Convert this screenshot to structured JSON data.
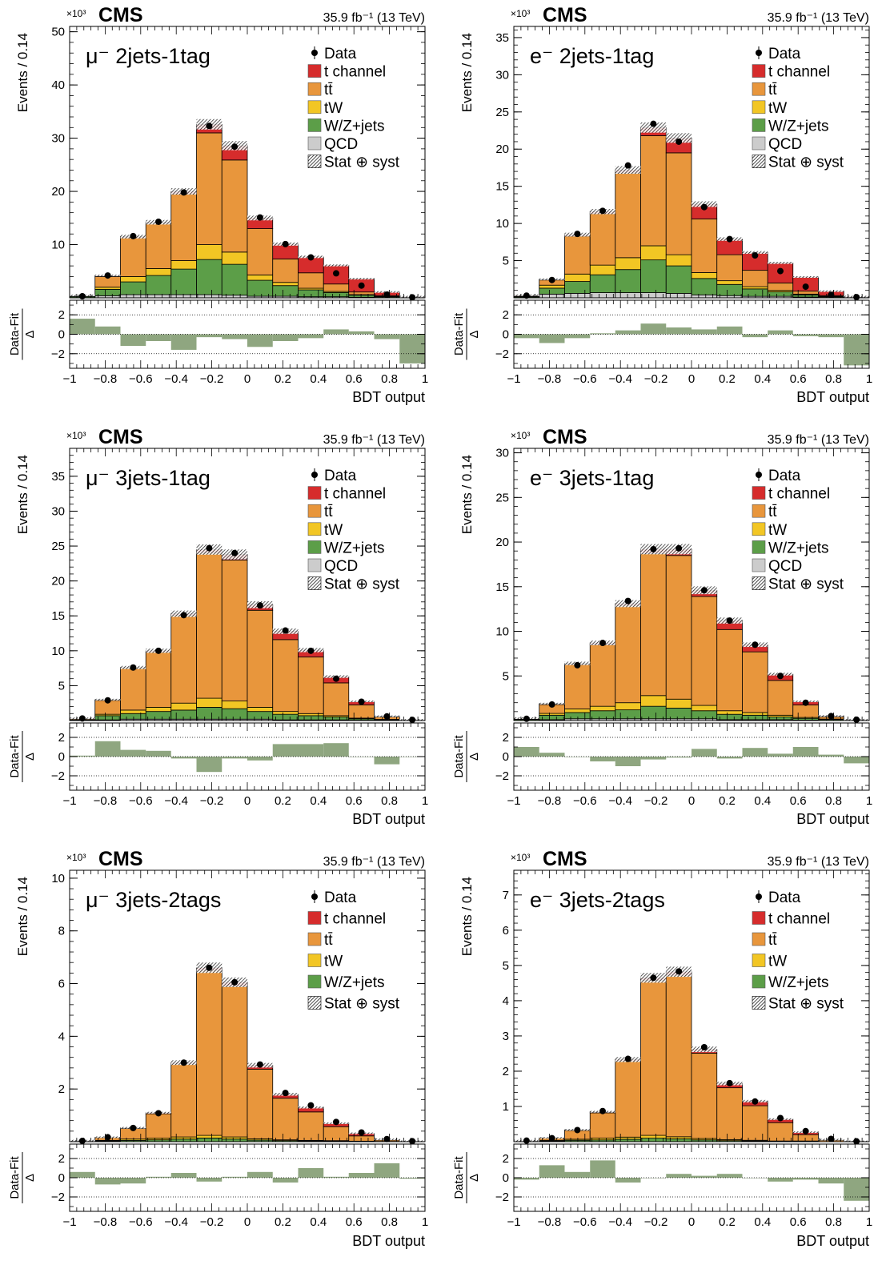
{
  "figure": {
    "colors": {
      "t_channel": "#d62c2c",
      "ttbar": "#e8963c",
      "tW": "#f2c624",
      "wzjets": "#5c9e48",
      "qcd": "#cccccc",
      "ratio": "#8fa680"
    }
  },
  "chart_data": [
    {
      "type": "bar",
      "panel_label": "μ⁻ 2jets-1tag",
      "experiment": "CMS",
      "lumi": "35.9 fb⁻¹ (13 TeV)",
      "yexp": "×10³",
      "ylabel": "Events / 0.14",
      "xlabel": "BDT output",
      "ratio_ylabel_num": "Data-Fit",
      "ratio_ylabel_den": "Δ",
      "ylim": [
        0,
        51
      ],
      "yticks": [
        10,
        20,
        30,
        40,
        50
      ],
      "xlim": [
        -1,
        1
      ],
      "xticks": [
        "−1",
        "−0.8",
        "−0.6",
        "−0.4",
        "−0.2",
        "0",
        "0.2",
        "0.4",
        "0.6",
        "0.8",
        "1"
      ],
      "ratio_ylim": [
        -3.5,
        3.5
      ],
      "ratio_yticks": [
        "2",
        "0",
        "−2"
      ],
      "bin_edges": [
        -1.0,
        -0.857,
        -0.714,
        -0.571,
        -0.429,
        -0.286,
        -0.143,
        0.0,
        0.143,
        0.286,
        0.429,
        0.571,
        0.714,
        0.857,
        1.0
      ],
      "legend": [
        "Data",
        "t channel",
        "tt̄",
        "tW",
        "W/Z+jets",
        "QCD",
        "Stat ⊕ syst"
      ],
      "series": [
        {
          "key": "qcd",
          "values": [
            0.05,
            0.4,
            0.6,
            0.6,
            0.6,
            0.6,
            0.5,
            0.3,
            0.3,
            0.2,
            0.2,
            0.1,
            0.05,
            0.02
          ]
        },
        {
          "key": "wzjets",
          "values": [
            0.2,
            1.2,
            2.4,
            3.6,
            4.8,
            6.6,
            5.8,
            3.0,
            2.0,
            1.3,
            0.8,
            0.4,
            0.15,
            0.03
          ]
        },
        {
          "key": "tW",
          "values": [
            0.05,
            0.4,
            1.0,
            1.3,
            1.6,
            2.8,
            2.3,
            1.0,
            0.6,
            0.3,
            0.2,
            0.1,
            0.05,
            0.01
          ]
        },
        {
          "key": "ttbar",
          "values": [
            0.1,
            2.0,
            7.3,
            8.5,
            12.5,
            21.0,
            17.3,
            8.7,
            4.4,
            2.9,
            1.4,
            0.5,
            0.15,
            0.02
          ]
        },
        {
          "key": "t_channel",
          "values": [
            0.05,
            0.2,
            0.2,
            0.2,
            0.5,
            1.6,
            2.7,
            2.0,
            2.8,
            3.0,
            3.5,
            2.5,
            0.7,
            0.15
          ]
        }
      ],
      "data": [
        0.3,
        4.2,
        11.6,
        14.3,
        19.8,
        32.3,
        28.4,
        15.1,
        10.1,
        7.6,
        4.6,
        2.3,
        0.6,
        0.1
      ],
      "ratio": [
        1.6,
        0.8,
        -1.2,
        -0.7,
        -1.6,
        -0.3,
        -0.5,
        -1.3,
        -0.7,
        -0.4,
        0.5,
        0.3,
        -0.5,
        -3.0
      ]
    },
    {
      "type": "bar",
      "panel_label": "e⁻ 2jets-1tag",
      "experiment": "CMS",
      "lumi": "35.9 fb⁻¹ (13 TeV)",
      "yexp": "×10³",
      "ylabel": "Events / 0.14",
      "xlabel": "BDT output",
      "ratio_ylabel_num": "Data-Fit",
      "ratio_ylabel_den": "Δ",
      "ylim": [
        0,
        36.5
      ],
      "yticks": [
        5,
        10,
        15,
        20,
        25,
        30,
        35
      ],
      "xlim": [
        -1,
        1
      ],
      "xticks": [
        "−1",
        "−0.8",
        "−0.6",
        "−0.4",
        "−0.2",
        "0",
        "0.2",
        "0.4",
        "0.6",
        "0.8",
        "1"
      ],
      "ratio_ylim": [
        -3.5,
        3.5
      ],
      "ratio_yticks": [
        "2",
        "0",
        "−2"
      ],
      "bin_edges": [
        -1.0,
        -0.857,
        -0.714,
        -0.571,
        -0.429,
        -0.286,
        -0.143,
        0.0,
        0.143,
        0.286,
        0.429,
        0.571,
        0.714,
        0.857,
        1.0
      ],
      "legend": [
        "Data",
        "t channel",
        "tt̄",
        "tW",
        "W/Z+jets",
        "QCD",
        "Stat ⊕ syst"
      ],
      "series": [
        {
          "key": "qcd",
          "values": [
            0.05,
            0.5,
            0.6,
            0.7,
            0.7,
            0.7,
            0.6,
            0.4,
            0.3,
            0.2,
            0.2,
            0.1,
            0.05,
            0.02
          ]
        },
        {
          "key": "wzjets",
          "values": [
            0.1,
            0.8,
            1.6,
            2.4,
            3.1,
            4.4,
            3.7,
            2.2,
            1.5,
            1.0,
            0.6,
            0.3,
            0.1,
            0.02
          ]
        },
        {
          "key": "tW",
          "values": [
            0.05,
            0.4,
            1.0,
            1.3,
            1.6,
            1.9,
            1.5,
            0.8,
            0.5,
            0.3,
            0.2,
            0.1,
            0.05,
            0.01
          ]
        },
        {
          "key": "ttbar",
          "values": [
            0.1,
            0.7,
            5.1,
            6.9,
            11.4,
            14.8,
            13.7,
            7.2,
            3.5,
            2.2,
            1.0,
            0.4,
            0.1,
            0.02
          ]
        },
        {
          "key": "t_channel",
          "values": [
            0.05,
            0.1,
            0.2,
            0.3,
            0.4,
            1.1,
            2.0,
            2.0,
            2.1,
            2.4,
            2.7,
            1.9,
            0.6,
            0.1
          ]
        }
      ],
      "data": [
        0.3,
        2.4,
        8.6,
        11.7,
        17.8,
        23.4,
        21.0,
        12.2,
        7.9,
        5.7,
        3.6,
        1.5,
        0.4,
        0.1
      ],
      "ratio": [
        -0.4,
        -0.9,
        -0.4,
        0.1,
        0.4,
        1.1,
        0.7,
        0.5,
        0.8,
        -0.3,
        0.4,
        -0.2,
        -0.3,
        -3.2
      ]
    },
    {
      "type": "bar",
      "panel_label": "μ⁻ 3jets-1tag",
      "experiment": "CMS",
      "lumi": "35.9 fb⁻¹ (13 TeV)",
      "yexp": "×10³",
      "ylabel": "Events / 0.14",
      "xlabel": "BDT output",
      "ratio_ylabel_num": "Data-Fit",
      "ratio_ylabel_den": "Δ",
      "ylim": [
        0,
        39
      ],
      "yticks": [
        5,
        10,
        15,
        20,
        25,
        30,
        35
      ],
      "xlim": [
        -1,
        1
      ],
      "xticks": [
        "−1",
        "−0.8",
        "−0.6",
        "−0.4",
        "−0.2",
        "0",
        "0.2",
        "0.4",
        "0.6",
        "0.8",
        "1"
      ],
      "ratio_ylim": [
        -3.5,
        3.5
      ],
      "ratio_yticks": [
        "2",
        "0",
        "−2"
      ],
      "bin_edges": [
        -1.0,
        -0.857,
        -0.714,
        -0.571,
        -0.429,
        -0.286,
        -0.143,
        0.0,
        0.143,
        0.286,
        0.429,
        0.571,
        0.714,
        0.857,
        1.0
      ],
      "legend": [
        "Data",
        "t channel",
        "tt̄",
        "tW",
        "W/Z+jets",
        "QCD",
        "Stat ⊕ syst"
      ],
      "series": [
        {
          "key": "qcd",
          "values": [
            0.02,
            0.1,
            0.2,
            0.2,
            0.2,
            0.2,
            0.2,
            0.2,
            0.1,
            0.1,
            0.1,
            0.05,
            0.02,
            0.01
          ]
        },
        {
          "key": "wzjets",
          "values": [
            0.1,
            0.6,
            0.8,
            1.1,
            1.3,
            1.7,
            1.5,
            1.1,
            0.8,
            0.6,
            0.4,
            0.2,
            0.1,
            0.02
          ]
        },
        {
          "key": "tW",
          "values": [
            0.03,
            0.2,
            0.5,
            0.6,
            1.0,
            1.3,
            1.1,
            0.6,
            0.4,
            0.3,
            0.2,
            0.1,
            0.05,
            0.01
          ]
        },
        {
          "key": "ttbar",
          "values": [
            0.15,
            2.0,
            6.0,
            7.9,
            12.6,
            20.8,
            20.2,
            13.9,
            10.3,
            8.1,
            4.7,
            1.9,
            0.35,
            0.05
          ]
        },
        {
          "key": "t_channel",
          "values": [
            0.02,
            0.1,
            0.1,
            0.2,
            0.2,
            0.5,
            0.8,
            0.8,
            1.2,
            1.0,
            0.9,
            0.5,
            0.1,
            0.02
          ]
        }
      ],
      "data": [
        0.3,
        2.9,
        7.6,
        10.0,
        15.1,
        24.7,
        24.0,
        16.5,
        12.9,
        10.0,
        6.0,
        2.7,
        0.6,
        0.1
      ],
      "ratio": [
        0.1,
        1.6,
        0.7,
        0.6,
        -0.2,
        -1.6,
        -0.2,
        -0.4,
        1.3,
        1.3,
        1.4,
        0.0,
        -0.8,
        0.0
      ]
    },
    {
      "type": "bar",
      "panel_label": "e⁻ 3jets-1tag",
      "experiment": "CMS",
      "lumi": "35.9 fb⁻¹ (13 TeV)",
      "yexp": "×10³",
      "ylabel": "Events / 0.14",
      "xlabel": "BDT output",
      "ratio_ylabel_num": "Data-Fit",
      "ratio_ylabel_den": "Δ",
      "ylim": [
        0,
        30.5
      ],
      "yticks": [
        5,
        10,
        15,
        20,
        25,
        30
      ],
      "xlim": [
        -1,
        1
      ],
      "xticks": [
        "−1",
        "−0.8",
        "−0.6",
        "−0.4",
        "−0.2",
        "0",
        "0.2",
        "0.4",
        "0.6",
        "0.8",
        "1"
      ],
      "ratio_ylim": [
        -3.5,
        3.5
      ],
      "ratio_yticks": [
        "2",
        "0",
        "−2"
      ],
      "bin_edges": [
        -1.0,
        -0.857,
        -0.714,
        -0.571,
        -0.429,
        -0.286,
        -0.143,
        0.0,
        0.143,
        0.286,
        0.429,
        0.571,
        0.714,
        0.857,
        1.0
      ],
      "legend": [
        "Data",
        "t channel",
        "tt̄",
        "tW",
        "W/Z+jets",
        "QCD",
        "Stat ⊕ syst"
      ],
      "series": [
        {
          "key": "qcd",
          "values": [
            0.02,
            0.1,
            0.2,
            0.2,
            0.2,
            0.2,
            0.2,
            0.2,
            0.1,
            0.1,
            0.1,
            0.05,
            0.02,
            0.01
          ]
        },
        {
          "key": "wzjets",
          "values": [
            0.1,
            0.5,
            0.7,
            0.9,
            1.0,
            1.4,
            1.2,
            0.9,
            0.6,
            0.5,
            0.3,
            0.2,
            0.1,
            0.02
          ]
        },
        {
          "key": "tW",
          "values": [
            0.03,
            0.2,
            0.4,
            0.5,
            0.8,
            1.2,
            1.0,
            0.6,
            0.4,
            0.3,
            0.2,
            0.1,
            0.05,
            0.01
          ]
        },
        {
          "key": "ttbar",
          "values": [
            0.1,
            1.0,
            5.0,
            6.9,
            10.9,
            15.9,
            16.1,
            12.2,
            9.1,
            6.8,
            3.9,
            1.4,
            0.25,
            0.04
          ]
        },
        {
          "key": "t_channel",
          "values": [
            0.02,
            0.1,
            0.1,
            0.2,
            0.2,
            0.5,
            0.7,
            0.7,
            1.0,
            0.8,
            0.7,
            0.4,
            0.1,
            0.02
          ]
        }
      ],
      "data": [
        0.2,
        1.8,
        6.2,
        8.7,
        13.4,
        19.2,
        19.3,
        14.6,
        11.2,
        8.5,
        5.0,
        2.0,
        0.5,
        0.1
      ],
      "ratio": [
        1.0,
        0.4,
        0.0,
        -0.5,
        -1.0,
        -0.3,
        -0.1,
        0.8,
        -0.2,
        0.9,
        0.3,
        1.0,
        0.2,
        -0.7
      ]
    },
    {
      "type": "bar",
      "panel_label": "μ⁻ 3jets-2tags",
      "experiment": "CMS",
      "lumi": "35.9 fb⁻¹ (13 TeV)",
      "yexp": "×10³",
      "ylabel": "Events / 0.14",
      "xlabel": "BDT output",
      "ratio_ylabel_num": "Data-Fit",
      "ratio_ylabel_den": "Δ",
      "ylim": [
        0,
        10.3
      ],
      "yticks": [
        2,
        4,
        6,
        8,
        10
      ],
      "xlim": [
        -1,
        1
      ],
      "xticks": [
        "−1",
        "−0.8",
        "−0.6",
        "−0.4",
        "−0.2",
        "0",
        "0.2",
        "0.4",
        "0.6",
        "0.8",
        "1"
      ],
      "ratio_ylim": [
        -3.5,
        3.5
      ],
      "ratio_yticks": [
        "2",
        "0",
        "−2"
      ],
      "bin_edges": [
        -1.0,
        -0.857,
        -0.714,
        -0.571,
        -0.429,
        -0.286,
        -0.143,
        0.0,
        0.143,
        0.286,
        0.429,
        0.571,
        0.714,
        0.857,
        1.0
      ],
      "legend": [
        "Data",
        "t channel",
        "tt̄",
        "tW",
        "W/Z+jets",
        "Stat ⊕ syst"
      ],
      "series": [
        {
          "key": "wzjets",
          "values": [
            0.01,
            0.03,
            0.05,
            0.07,
            0.1,
            0.14,
            0.1,
            0.06,
            0.04,
            0.03,
            0.02,
            0.01,
            0.01,
            0.0
          ]
        },
        {
          "key": "tW",
          "values": [
            0.01,
            0.02,
            0.05,
            0.06,
            0.08,
            0.1,
            0.08,
            0.05,
            0.03,
            0.02,
            0.02,
            0.01,
            0.0,
            0.0
          ]
        },
        {
          "key": "ttbar",
          "values": [
            0.02,
            0.1,
            0.4,
            0.93,
            2.77,
            6.26,
            5.72,
            2.64,
            1.58,
            1.08,
            0.53,
            0.2,
            0.05,
            0.01
          ]
        },
        {
          "key": "t_channel",
          "values": [
            0.0,
            0.02,
            0.03,
            0.04,
            0.05,
            0.1,
            0.15,
            0.15,
            0.15,
            0.17,
            0.13,
            0.1,
            0.03,
            0.01
          ]
        }
      ],
      "data": [
        0.03,
        0.17,
        0.52,
        1.08,
        3.0,
        6.6,
        6.05,
        2.93,
        1.85,
        1.38,
        0.75,
        0.35,
        0.1,
        0.02
      ],
      "ratio": [
        0.6,
        -0.7,
        -0.6,
        0.1,
        0.5,
        -0.4,
        0.1,
        0.6,
        -0.5,
        1.0,
        0.1,
        0.5,
        1.5,
        -0.1
      ]
    },
    {
      "type": "bar",
      "panel_label": "e⁻ 3jets-2tags",
      "experiment": "CMS",
      "lumi": "35.9 fb⁻¹ (13 TeV)",
      "yexp": "×10³",
      "ylabel": "Events / 0.14",
      "xlabel": "BDT output",
      "ratio_ylabel_num": "Data-Fit",
      "ratio_ylabel_den": "Δ",
      "ylim": [
        0,
        7.7
      ],
      "yticks": [
        1,
        2,
        3,
        4,
        5,
        6,
        7
      ],
      "xlim": [
        -1,
        1
      ],
      "xticks": [
        "−1",
        "−0.8",
        "−0.6",
        "−0.4",
        "−0.2",
        "0",
        "0.2",
        "0.4",
        "0.6",
        "0.8",
        "1"
      ],
      "ratio_ylim": [
        -3.5,
        3.5
      ],
      "ratio_yticks": [
        "2",
        "0",
        "−2"
      ],
      "bin_edges": [
        -1.0,
        -0.857,
        -0.714,
        -0.571,
        -0.429,
        -0.286,
        -0.143,
        0.0,
        0.143,
        0.286,
        0.429,
        0.571,
        0.714,
        0.857,
        1.0
      ],
      "legend": [
        "Data",
        "t channel",
        "tt̄",
        "tW",
        "W/Z+jets",
        "Stat ⊕ syst"
      ],
      "series": [
        {
          "key": "wzjets",
          "values": [
            0.01,
            0.02,
            0.04,
            0.05,
            0.07,
            0.1,
            0.08,
            0.05,
            0.03,
            0.02,
            0.01,
            0.01,
            0.0,
            0.0
          ]
        },
        {
          "key": "tW",
          "values": [
            0.01,
            0.02,
            0.03,
            0.05,
            0.06,
            0.08,
            0.06,
            0.04,
            0.03,
            0.02,
            0.01,
            0.01,
            0.0,
            0.0
          ]
        },
        {
          "key": "ttbar",
          "values": [
            0.01,
            0.06,
            0.25,
            0.72,
            2.16,
            4.4,
            4.58,
            2.42,
            1.47,
            0.98,
            0.52,
            0.18,
            0.04,
            0.01
          ]
        },
        {
          "key": "t_channel",
          "values": [
            0.0,
            0.01,
            0.02,
            0.03,
            0.04,
            0.07,
            0.1,
            0.11,
            0.12,
            0.13,
            0.1,
            0.07,
            0.02,
            0.0
          ]
        }
      ],
      "data": [
        0.03,
        0.1,
        0.33,
        0.87,
        2.35,
        4.65,
        4.83,
        2.68,
        1.66,
        1.14,
        0.67,
        0.3,
        0.08,
        0.01
      ],
      "ratio": [
        -0.2,
        1.3,
        0.6,
        1.8,
        -0.5,
        0.0,
        0.4,
        0.2,
        0.4,
        0.0,
        -0.4,
        -0.2,
        -0.6,
        -2.4
      ]
    }
  ]
}
